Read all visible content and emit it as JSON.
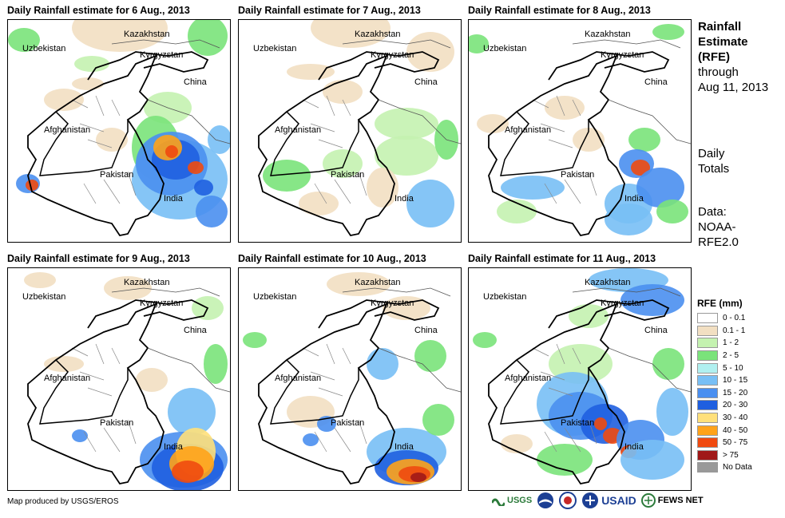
{
  "panels": [
    {
      "title": "Daily Rainfall estimate for 6 Aug., 2013"
    },
    {
      "title": "Daily Rainfall estimate for 7 Aug., 2013"
    },
    {
      "title": "Daily Rainfall estimate for 8 Aug., 2013"
    },
    {
      "title": "Daily Rainfall estimate for 9 Aug., 2013"
    },
    {
      "title": "Daily Rainfall estimate for 10 Aug., 2013"
    },
    {
      "title": "Daily Rainfall estimate for 11 Aug., 2013"
    }
  ],
  "place_labels": {
    "kazakhstan": "Kazakhstan",
    "uzbekistan": "Uzbekistan",
    "kyrgyzstan": "Kyrgyzstan",
    "china": "China",
    "afghanistan": "Afghanistan",
    "pakistan": "Pakistan",
    "india": "India"
  },
  "side": {
    "title_line1": "Rainfall",
    "title_line2": "Estimate",
    "title_line3": "(RFE)",
    "through": "through",
    "date": "Aug 11, 2013",
    "daily": "Daily",
    "totals": "Totals",
    "data_label": "Data:",
    "data_src1": "NOAA-",
    "data_src2": "RFE2.0"
  },
  "legend": {
    "title": "RFE (mm)",
    "items": [
      {
        "label": "0 - 0.1",
        "color": "#ffffff"
      },
      {
        "label": "0.1 - 1",
        "color": "#f2dfc2"
      },
      {
        "label": "1 - 2",
        "color": "#c4f2b0"
      },
      {
        "label": "2 - 5",
        "color": "#7ae37a"
      },
      {
        "label": "5 - 10",
        "color": "#b0f0f0"
      },
      {
        "label": "10 - 15",
        "color": "#78bff5"
      },
      {
        "label": "15 - 20",
        "color": "#4a8ff0"
      },
      {
        "label": "20 - 30",
        "color": "#1f5fe0"
      },
      {
        "label": "30 - 40",
        "color": "#ffe07a"
      },
      {
        "label": "40 - 50",
        "color": "#ffa31a"
      },
      {
        "label": "50 - 75",
        "color": "#f04a10"
      },
      {
        "label": "> 75",
        "color": "#a01818"
      },
      {
        "label": "No Data",
        "color": "#999999"
      }
    ]
  },
  "footer": "Map produced by USGS/EROS",
  "logos": [
    "USGS",
    "NOAA",
    "USAID",
    "FEWS NET"
  ]
}
